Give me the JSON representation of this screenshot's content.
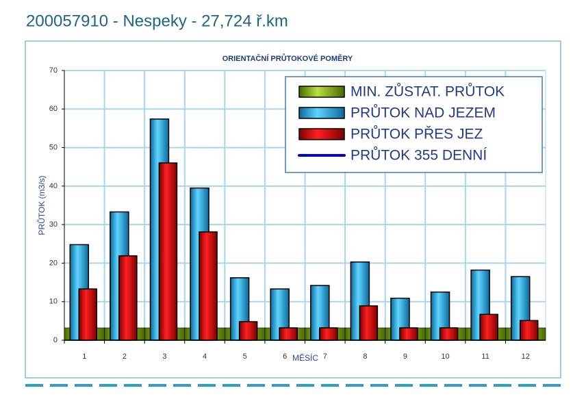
{
  "page_title": "200057910 - Nespeky - 27,724 ř.km",
  "chart_data": {
    "type": "bar",
    "title": "ORIENTAČNÍ PRŮTOKOVÉ POMĚRY",
    "x_label": "MĚSÍC",
    "y_label": "PRŮTOK (m3/s)",
    "categories": [
      "1",
      "2",
      "3",
      "4",
      "5",
      "6",
      "7",
      "8",
      "9",
      "10",
      "11",
      "12"
    ],
    "series": [
      {
        "name": "MIN. ZŮSTAT. PRŮTOK",
        "color": "#7db400",
        "kind": "band",
        "values": [
          3.2,
          3.2,
          3.2,
          3.2,
          3.2,
          3.2,
          3.2,
          3.2,
          3.2,
          3.2,
          3.2,
          3.2
        ]
      },
      {
        "name": "PRŮTOK NAD JEZEM",
        "color": "#22b4e6",
        "kind": "bar",
        "values": [
          24.8,
          33.3,
          57.4,
          39.5,
          16.2,
          13.3,
          14.2,
          20.3,
          10.9,
          12.5,
          18.2,
          16.5
        ]
      },
      {
        "name": "PRŮTOK PŘES JEZ",
        "color": "#e00000",
        "kind": "bar",
        "values": [
          13.3,
          21.9,
          46.0,
          28.1,
          4.8,
          3.2,
          3.2,
          8.9,
          3.2,
          3.2,
          6.7,
          5.1
        ]
      },
      {
        "name": "PRŮTOK 355 DENNÍ",
        "color": "#0000e6",
        "kind": "line",
        "values": [
          null,
          null,
          null,
          null,
          null,
          null,
          null,
          null,
          null,
          null,
          null,
          null
        ]
      }
    ],
    "ylim": [
      0,
      70
    ],
    "yticks": [
      0,
      10,
      20,
      30,
      40,
      50,
      60,
      70
    ],
    "grid": true,
    "legend": "upper right"
  }
}
